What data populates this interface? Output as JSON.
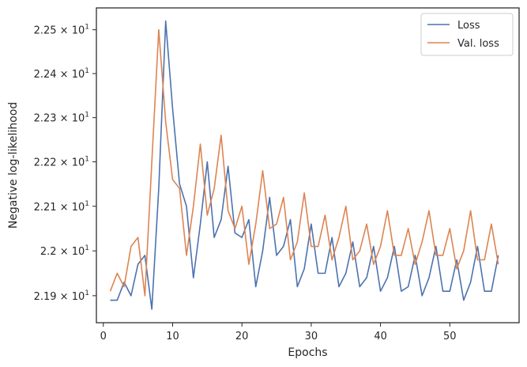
{
  "chart_data": {
    "type": "line",
    "title": "",
    "xlabel": "Epochs",
    "ylabel": "Negative log-likelihood",
    "yscale": "log",
    "grid": false,
    "legend_position": "top-right",
    "xlim": [
      -1,
      60
    ],
    "ylim": [
      21.84,
      22.55
    ],
    "xticks": [
      0,
      10,
      20,
      30,
      40,
      50
    ],
    "xtick_labels": [
      "0",
      "10",
      "20",
      "30",
      "40",
      "50"
    ],
    "yticks": [
      21.9,
      22.0,
      22.1,
      22.2,
      22.3,
      22.4,
      22.5
    ],
    "ytick_labels": [
      {
        "mant": "2.19",
        "exp": "1"
      },
      {
        "mant": "2.2",
        "exp": "1"
      },
      {
        "mant": "2.21",
        "exp": "1"
      },
      {
        "mant": "2.22",
        "exp": "1"
      },
      {
        "mant": "2.23",
        "exp": "1"
      },
      {
        "mant": "2.24",
        "exp": "1"
      },
      {
        "mant": "2.25",
        "exp": "1"
      }
    ],
    "x": [
      1,
      2,
      3,
      4,
      5,
      6,
      7,
      8,
      9,
      10,
      11,
      12,
      13,
      14,
      15,
      16,
      17,
      18,
      19,
      20,
      21,
      22,
      23,
      24,
      25,
      26,
      27,
      28,
      29,
      30,
      31,
      32,
      33,
      34,
      35,
      36,
      37,
      38,
      39,
      40,
      41,
      42,
      43,
      44,
      45,
      46,
      47,
      48,
      49,
      50,
      51,
      52,
      53,
      54,
      55,
      56,
      57
    ],
    "series": [
      {
        "name": "Loss",
        "color": "#4c72b0",
        "values": [
          21.89,
          21.89,
          21.93,
          21.9,
          21.97,
          21.99,
          21.87,
          22.14,
          22.52,
          22.32,
          22.15,
          22.1,
          21.94,
          22.06,
          22.2,
          22.03,
          22.07,
          22.19,
          22.04,
          22.03,
          22.07,
          21.92,
          22.0,
          22.12,
          21.99,
          22.01,
          22.07,
          21.92,
          21.96,
          22.06,
          21.95,
          21.95,
          22.03,
          21.92,
          21.95,
          22.02,
          21.92,
          21.94,
          22.01,
          21.91,
          21.94,
          22.01,
          21.91,
          21.92,
          21.99,
          21.9,
          21.94,
          22.01,
          21.91,
          21.91,
          21.98,
          21.89,
          21.93,
          22.01,
          21.91,
          21.91,
          21.99
        ]
      },
      {
        "name": "Val. loss",
        "color": "#dd8452",
        "values": [
          21.91,
          21.95,
          21.92,
          22.01,
          22.03,
          21.9,
          22.2,
          22.5,
          22.29,
          22.16,
          22.14,
          21.99,
          22.1,
          22.24,
          22.08,
          22.14,
          22.26,
          22.09,
          22.05,
          22.1,
          21.97,
          22.06,
          22.18,
          22.05,
          22.06,
          22.12,
          21.98,
          22.02,
          22.13,
          22.01,
          22.01,
          22.08,
          21.98,
          22.03,
          22.1,
          21.98,
          22.0,
          22.06,
          21.97,
          22.01,
          22.09,
          21.99,
          21.99,
          22.05,
          21.97,
          22.02,
          22.09,
          21.99,
          21.99,
          22.05,
          21.96,
          22.0,
          22.09,
          21.98,
          21.98,
          22.06,
          21.97
        ]
      }
    ]
  },
  "legend": {
    "items": [
      {
        "label": "Loss",
        "color": "#4c72b0"
      },
      {
        "label": "Val. loss",
        "color": "#dd8452"
      }
    ]
  }
}
